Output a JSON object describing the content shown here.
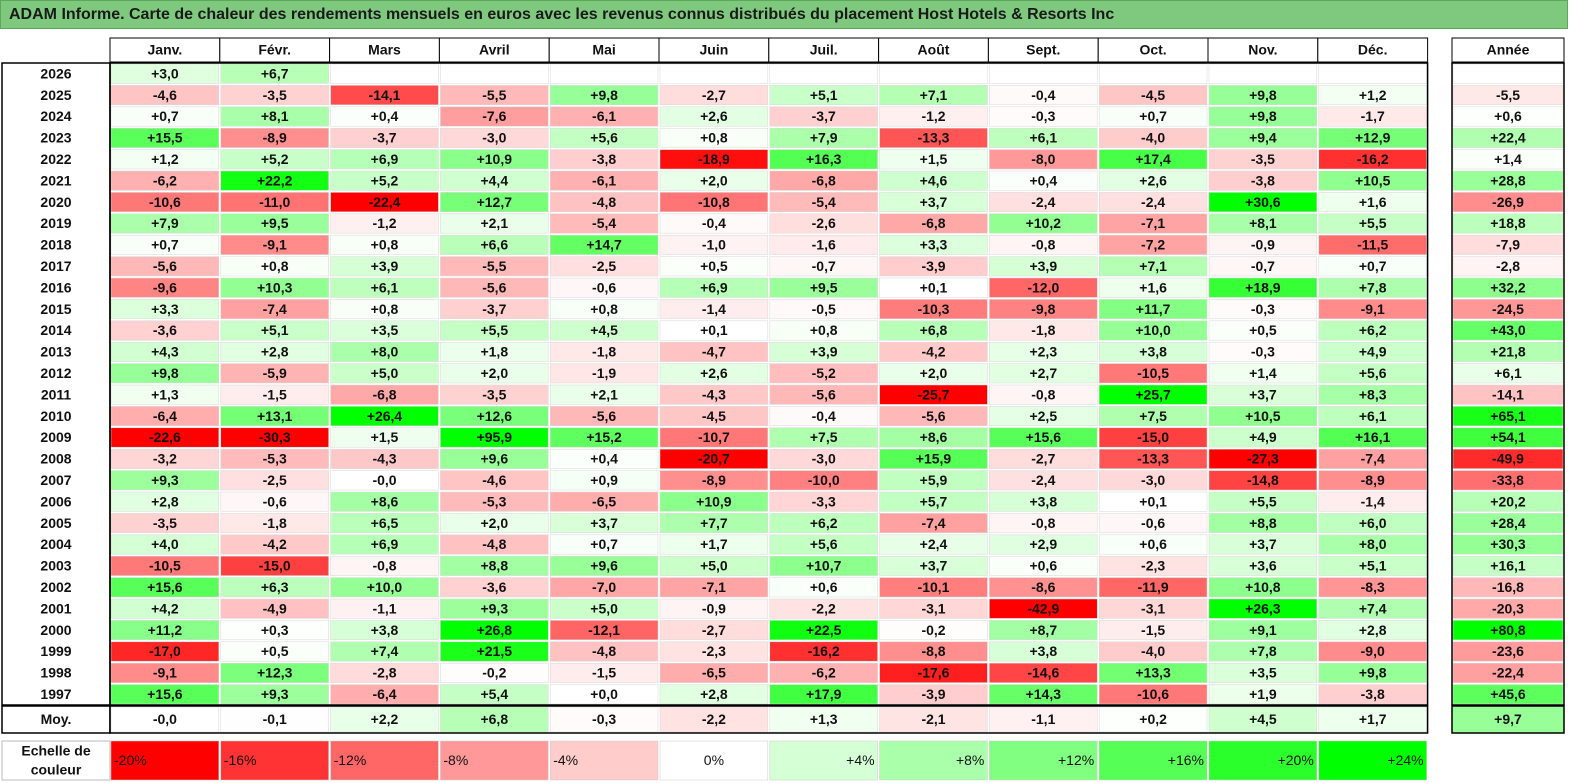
{
  "title": "ADAM Informe. Carte de chaleur des rendements mensuels en euros avec les revenus connus distribués du placement Host Hotels & Resorts Inc",
  "chart_data": {
    "type": "heatmap",
    "title": "ADAM Informe. Carte de chaleur des rendements mensuels en euros avec les revenus connus distribués du placement Host Hotels & Resorts Inc",
    "columns": [
      "Janv.",
      "Févr.",
      "Mars",
      "Avril",
      "Mai",
      "Juin",
      "Juil.",
      "Août",
      "Sept.",
      "Oct.",
      "Nov.",
      "Déc."
    ],
    "annual_header": "Année",
    "rows": [
      {
        "year": "2026",
        "values": [
          "+3,0",
          "+6,7",
          "",
          "",
          "",
          "",
          "",
          "",
          "",
          "",
          "",
          ""
        ],
        "annual": ""
      },
      {
        "year": "2025",
        "values": [
          "-4,6",
          "-3,5",
          "-14,1",
          "-5,5",
          "+9,8",
          "-2,7",
          "+5,1",
          "+7,1",
          "-0,4",
          "-4,5",
          "+9,8",
          "+1,2"
        ],
        "annual": "-5,5"
      },
      {
        "year": "2024",
        "values": [
          "+0,7",
          "+8,1",
          "+0,4",
          "-7,6",
          "-6,1",
          "+2,6",
          "-3,7",
          "-1,2",
          "-0,3",
          "+0,7",
          "+9,8",
          "-1,7"
        ],
        "annual": "+0,6"
      },
      {
        "year": "2023",
        "values": [
          "+15,5",
          "-8,9",
          "-3,7",
          "-3,0",
          "+5,6",
          "+0,8",
          "+7,9",
          "-13,3",
          "+6,1",
          "-4,0",
          "+9,4",
          "+12,9"
        ],
        "annual": "+22,4"
      },
      {
        "year": "2022",
        "values": [
          "+1,2",
          "+5,2",
          "+6,9",
          "+10,9",
          "-3,8",
          "-18,9",
          "+16,3",
          "+1,5",
          "-8,0",
          "+17,4",
          "-3,5",
          "-16,2"
        ],
        "annual": "+1,4"
      },
      {
        "year": "2021",
        "values": [
          "-6,2",
          "+22,2",
          "+5,2",
          "+4,4",
          "-6,1",
          "+2,0",
          "-6,8",
          "+4,6",
          "+0,4",
          "+2,6",
          "-3,8",
          "+10,5"
        ],
        "annual": "+28,8"
      },
      {
        "year": "2020",
        "values": [
          "-10,6",
          "-11,0",
          "-22,4",
          "+12,7",
          "-4,8",
          "-10,8",
          "-5,4",
          "+3,7",
          "-2,4",
          "-2,4",
          "+30,6",
          "+1,6"
        ],
        "annual": "-26,9"
      },
      {
        "year": "2019",
        "values": [
          "+7,9",
          "+9,5",
          "-1,2",
          "+2,1",
          "-5,4",
          "-0,4",
          "-2,6",
          "-6,8",
          "+10,2",
          "-7,1",
          "+8,1",
          "+5,5"
        ],
        "annual": "+18,8"
      },
      {
        "year": "2018",
        "values": [
          "+0,7",
          "-9,1",
          "+0,8",
          "+6,6",
          "+14,7",
          "-1,0",
          "-1,6",
          "+3,3",
          "-0,8",
          "-7,2",
          "-0,9",
          "-11,5"
        ],
        "annual": "-7,9"
      },
      {
        "year": "2017",
        "values": [
          "-5,6",
          "+0,8",
          "+3,9",
          "-5,5",
          "-2,5",
          "+0,5",
          "-0,7",
          "-3,9",
          "+3,9",
          "+7,1",
          "-0,7",
          "+0,7"
        ],
        "annual": "-2,8"
      },
      {
        "year": "2016",
        "values": [
          "-9,6",
          "+10,3",
          "+6,1",
          "-5,6",
          "-0,6",
          "+6,9",
          "+9,5",
          "+0,1",
          "-12,0",
          "+1,6",
          "+18,9",
          "+7,8"
        ],
        "annual": "+32,2"
      },
      {
        "year": "2015",
        "values": [
          "+3,3",
          "-7,4",
          "+0,8",
          "-3,7",
          "+0,8",
          "-1,4",
          "-0,5",
          "-10,3",
          "-9,8",
          "+11,7",
          "-0,3",
          "-9,1"
        ],
        "annual": "-24,5"
      },
      {
        "year": "2014",
        "values": [
          "-3,6",
          "+5,1",
          "+3,5",
          "+5,5",
          "+4,5",
          "+0,1",
          "+0,8",
          "+6,8",
          "-1,8",
          "+10,0",
          "+0,5",
          "+6,2"
        ],
        "annual": "+43,0"
      },
      {
        "year": "2013",
        "values": [
          "+4,3",
          "+2,8",
          "+8,0",
          "+1,8",
          "-1,8",
          "-4,7",
          "+3,9",
          "-4,2",
          "+2,3",
          "+3,8",
          "-0,3",
          "+4,9"
        ],
        "annual": "+21,8"
      },
      {
        "year": "2012",
        "values": [
          "+9,8",
          "-5,9",
          "+5,0",
          "+2,0",
          "-1,9",
          "+2,6",
          "-5,2",
          "+2,0",
          "+2,7",
          "-10,5",
          "+1,4",
          "+5,6"
        ],
        "annual": "+6,1"
      },
      {
        "year": "2011",
        "values": [
          "+1,3",
          "-1,5",
          "-6,8",
          "-3,5",
          "+2,1",
          "-4,3",
          "-5,6",
          "-25,7",
          "-0,8",
          "+25,7",
          "+3,7",
          "+8,3"
        ],
        "annual": "-14,1"
      },
      {
        "year": "2010",
        "values": [
          "-6,4",
          "+13,1",
          "+26,4",
          "+12,6",
          "-5,6",
          "-4,5",
          "-0,4",
          "-5,6",
          "+2,5",
          "+7,5",
          "+10,5",
          "+6,1"
        ],
        "annual": "+65,1"
      },
      {
        "year": "2009",
        "values": [
          "-22,6",
          "-30,3",
          "+1,5",
          "+95,9",
          "+15,2",
          "-10,7",
          "+7,5",
          "+8,6",
          "+15,6",
          "-15,0",
          "+4,9",
          "+16,1"
        ],
        "annual": "+54,1"
      },
      {
        "year": "2008",
        "values": [
          "-3,2",
          "-5,3",
          "-4,3",
          "+9,6",
          "+0,4",
          "-20,7",
          "-3,0",
          "+15,9",
          "-2,7",
          "-13,3",
          "-27,3",
          "-7,4"
        ],
        "annual": "-49,9"
      },
      {
        "year": "2007",
        "values": [
          "+9,3",
          "-2,5",
          "-0,0",
          "-4,6",
          "+0,9",
          "-8,9",
          "-10,0",
          "+5,9",
          "-2,4",
          "-3,0",
          "-14,8",
          "-8,9"
        ],
        "annual": "-33,8"
      },
      {
        "year": "2006",
        "values": [
          "+2,8",
          "-0,6",
          "+8,6",
          "-5,3",
          "-6,5",
          "+10,9",
          "-3,3",
          "+5,7",
          "+3,8",
          "+0,1",
          "+5,5",
          "-1,4"
        ],
        "annual": "+20,2"
      },
      {
        "year": "2005",
        "values": [
          "-3,5",
          "-1,8",
          "+6,5",
          "+2,0",
          "+3,7",
          "+7,7",
          "+6,2",
          "-7,4",
          "-0,8",
          "-0,6",
          "+8,8",
          "+6,0"
        ],
        "annual": "+28,4"
      },
      {
        "year": "2004",
        "values": [
          "+4,0",
          "-4,2",
          "+6,9",
          "-4,8",
          "+0,7",
          "+1,7",
          "+5,6",
          "+2,4",
          "+2,9",
          "+0,6",
          "+3,7",
          "+8,0"
        ],
        "annual": "+30,3"
      },
      {
        "year": "2003",
        "values": [
          "-10,5",
          "-15,0",
          "-0,8",
          "+8,8",
          "+9,6",
          "+5,0",
          "+10,7",
          "+3,7",
          "+0,6",
          "-2,3",
          "+3,6",
          "+5,1"
        ],
        "annual": "+16,1"
      },
      {
        "year": "2002",
        "values": [
          "+15,6",
          "+6,3",
          "+10,0",
          "-3,6",
          "-7,0",
          "-7,1",
          "+0,6",
          "-10,1",
          "-8,6",
          "-11,9",
          "+10,8",
          "-8,3"
        ],
        "annual": "-16,8"
      },
      {
        "year": "2001",
        "values": [
          "+4,2",
          "-4,9",
          "-1,1",
          "+9,3",
          "+5,0",
          "-0,9",
          "-2,2",
          "-3,1",
          "-42,9",
          "-3,1",
          "+26,3",
          "+7,4"
        ],
        "annual": "-20,3"
      },
      {
        "year": "2000",
        "values": [
          "+11,2",
          "+0,3",
          "+3,8",
          "+26,8",
          "-12,1",
          "-2,7",
          "+22,5",
          "-0,2",
          "+8,7",
          "-1,5",
          "+9,1",
          "+2,8"
        ],
        "annual": "+80,8"
      },
      {
        "year": "1999",
        "values": [
          "-17,0",
          "+0,5",
          "+7,4",
          "+21,5",
          "-4,8",
          "-2,3",
          "-16,2",
          "-8,8",
          "+3,8",
          "-4,0",
          "+7,8",
          "-9,0"
        ],
        "annual": "-23,6"
      },
      {
        "year": "1998",
        "values": [
          "-9,1",
          "+12,3",
          "-2,8",
          "-0,2",
          "-1,5",
          "-6,5",
          "-6,2",
          "-17,6",
          "-14,6",
          "+13,3",
          "+3,5",
          "+9,8"
        ],
        "annual": "-22,4"
      },
      {
        "year": "1997",
        "values": [
          "+15,6",
          "+9,3",
          "-6,4",
          "+5,4",
          "+0,0",
          "+2,8",
          "+17,9",
          "-3,9",
          "+14,3",
          "-10,6",
          "+1,9",
          "-3,8"
        ],
        "annual": "+45,6"
      }
    ],
    "average": {
      "label": "Moy.",
      "values": [
        "-0,0",
        "-0,1",
        "+2,2",
        "+6,8",
        "-0,3",
        "-2,2",
        "+1,3",
        "-2,1",
        "-1,1",
        "+0,2",
        "+4,5",
        "+1,7"
      ],
      "annual": "+9,7"
    },
    "color_scale": {
      "label_line1": "Echelle de",
      "label_line2": "couleur",
      "steps": [
        "-20%",
        "-16%",
        "-12%",
        "-8%",
        "-4%",
        "0%",
        "+4%",
        "+8%",
        "+12%",
        "+16%",
        "+20%",
        "+24%"
      ],
      "step_values": [
        -20,
        -16,
        -12,
        -8,
        -4,
        0,
        4,
        8,
        12,
        16,
        20,
        24
      ]
    },
    "colors": {
      "negative_max": "#ff0000",
      "neutral": "#ffffff",
      "positive_max": "#00ff00",
      "title_bg": "#7fc97f"
    }
  }
}
